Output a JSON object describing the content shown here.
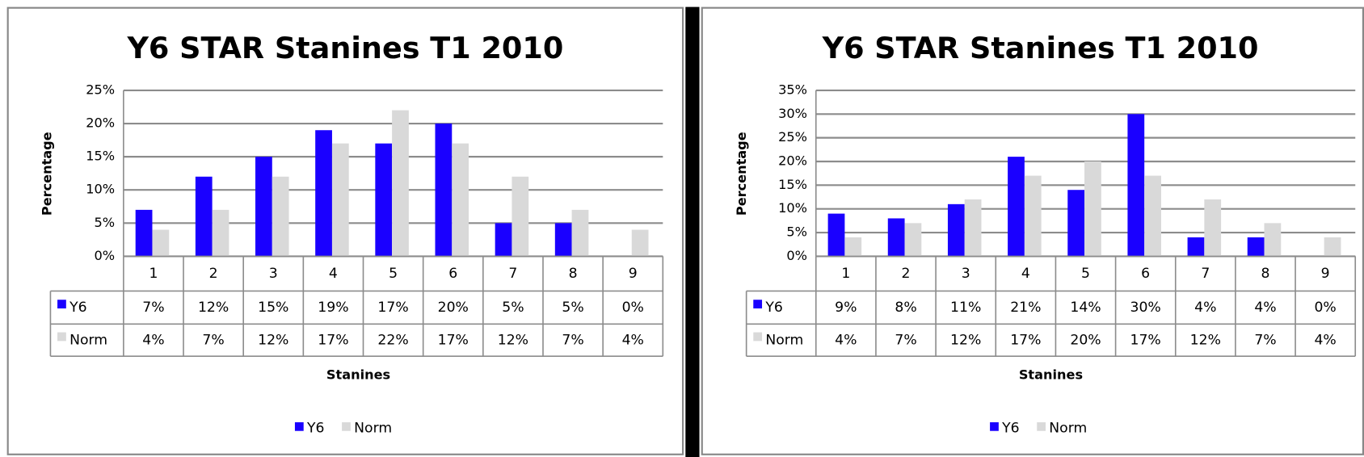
{
  "chart_data": [
    {
      "type": "bar",
      "title": "Y6 STAR Stanines T1 2010",
      "y_label": "Percentage",
      "x_label": "Stanines",
      "categories": [
        "1",
        "2",
        "3",
        "4",
        "5",
        "6",
        "7",
        "8",
        "9"
      ],
      "series": [
        {
          "name": "Y6",
          "color": "#1a00ff",
          "values": [
            7,
            12,
            15,
            19,
            17,
            20,
            5,
            5,
            0
          ],
          "value_labels": [
            "7%",
            "12%",
            "15%",
            "19%",
            "17%",
            "20%",
            "5%",
            "5%",
            "0%"
          ]
        },
        {
          "name": "Norm",
          "color": "#d9d9d9",
          "values": [
            4,
            7,
            12,
            17,
            22,
            17,
            12,
            7,
            4
          ],
          "value_labels": [
            "4%",
            "7%",
            "12%",
            "17%",
            "22%",
            "17%",
            "12%",
            "7%",
            "4%"
          ]
        }
      ],
      "ylim": [
        0,
        25
      ],
      "yticks": [
        {
          "value": 0,
          "label": "0%"
        },
        {
          "value": 5,
          "label": "5%"
        },
        {
          "value": 10,
          "label": "10%"
        },
        {
          "value": 15,
          "label": "15%"
        },
        {
          "value": 20,
          "label": "20%"
        },
        {
          "value": 25,
          "label": "25%"
        }
      ],
      "grid": true,
      "legend": "bottom",
      "data_table": true
    },
    {
      "type": "bar",
      "title": "Y6 STAR Stanines T1 2010",
      "y_label": "Percentage",
      "x_label": "Stanines",
      "categories": [
        "1",
        "2",
        "3",
        "4",
        "5",
        "6",
        "7",
        "8",
        "9"
      ],
      "series": [
        {
          "name": "Y6",
          "color": "#1a00ff",
          "values": [
            9,
            8,
            11,
            21,
            14,
            30,
            4,
            4,
            0
          ],
          "value_labels": [
            "9%",
            "8%",
            "11%",
            "21%",
            "14%",
            "30%",
            "4%",
            "4%",
            "0%"
          ]
        },
        {
          "name": "Norm",
          "color": "#d9d9d9",
          "values": [
            4,
            7,
            12,
            17,
            20,
            17,
            12,
            7,
            4
          ],
          "value_labels": [
            "4%",
            "7%",
            "12%",
            "17%",
            "20%",
            "17%",
            "12%",
            "7%",
            "4%"
          ]
        }
      ],
      "ylim": [
        0,
        35
      ],
      "yticks": [
        {
          "value": 0,
          "label": "0%"
        },
        {
          "value": 5,
          "label": "5%"
        },
        {
          "value": 10,
          "label": "10%"
        },
        {
          "value": 15,
          "label": "15%"
        },
        {
          "value": 20,
          "label": "20%"
        },
        {
          "value": 25,
          "label": "25%"
        },
        {
          "value": 30,
          "label": "30%"
        },
        {
          "value": 35,
          "label": "35%"
        }
      ],
      "grid": true,
      "legend": "bottom",
      "data_table": true
    }
  ]
}
